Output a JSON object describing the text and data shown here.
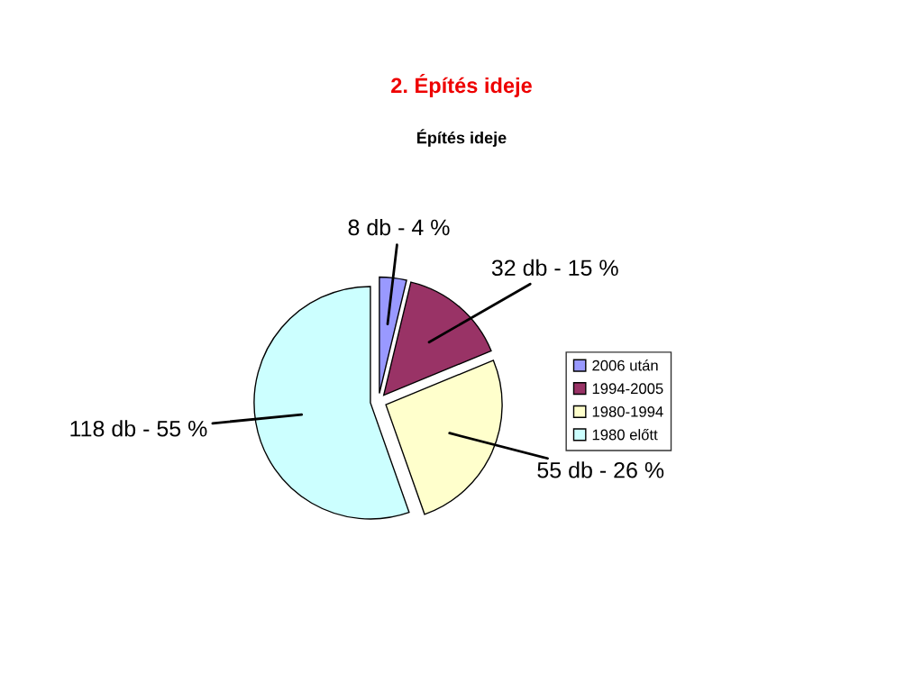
{
  "chart_data": {
    "type": "pie",
    "title": "2. Építés ideje",
    "subtitle": "Építés ideje",
    "categories": [
      "2006 után",
      "1994-2005",
      "1980-1994",
      "1980 előtt"
    ],
    "values": [
      8,
      32,
      55,
      118
    ],
    "colors": [
      "#9999ff",
      "#993366",
      "#ffffcc",
      "#ccffff"
    ],
    "value_labels": [
      "8 db - 4 %",
      "32 db - 15 %",
      "55 db - 26 %",
      "118 db - 55 %"
    ],
    "legend": "right"
  }
}
